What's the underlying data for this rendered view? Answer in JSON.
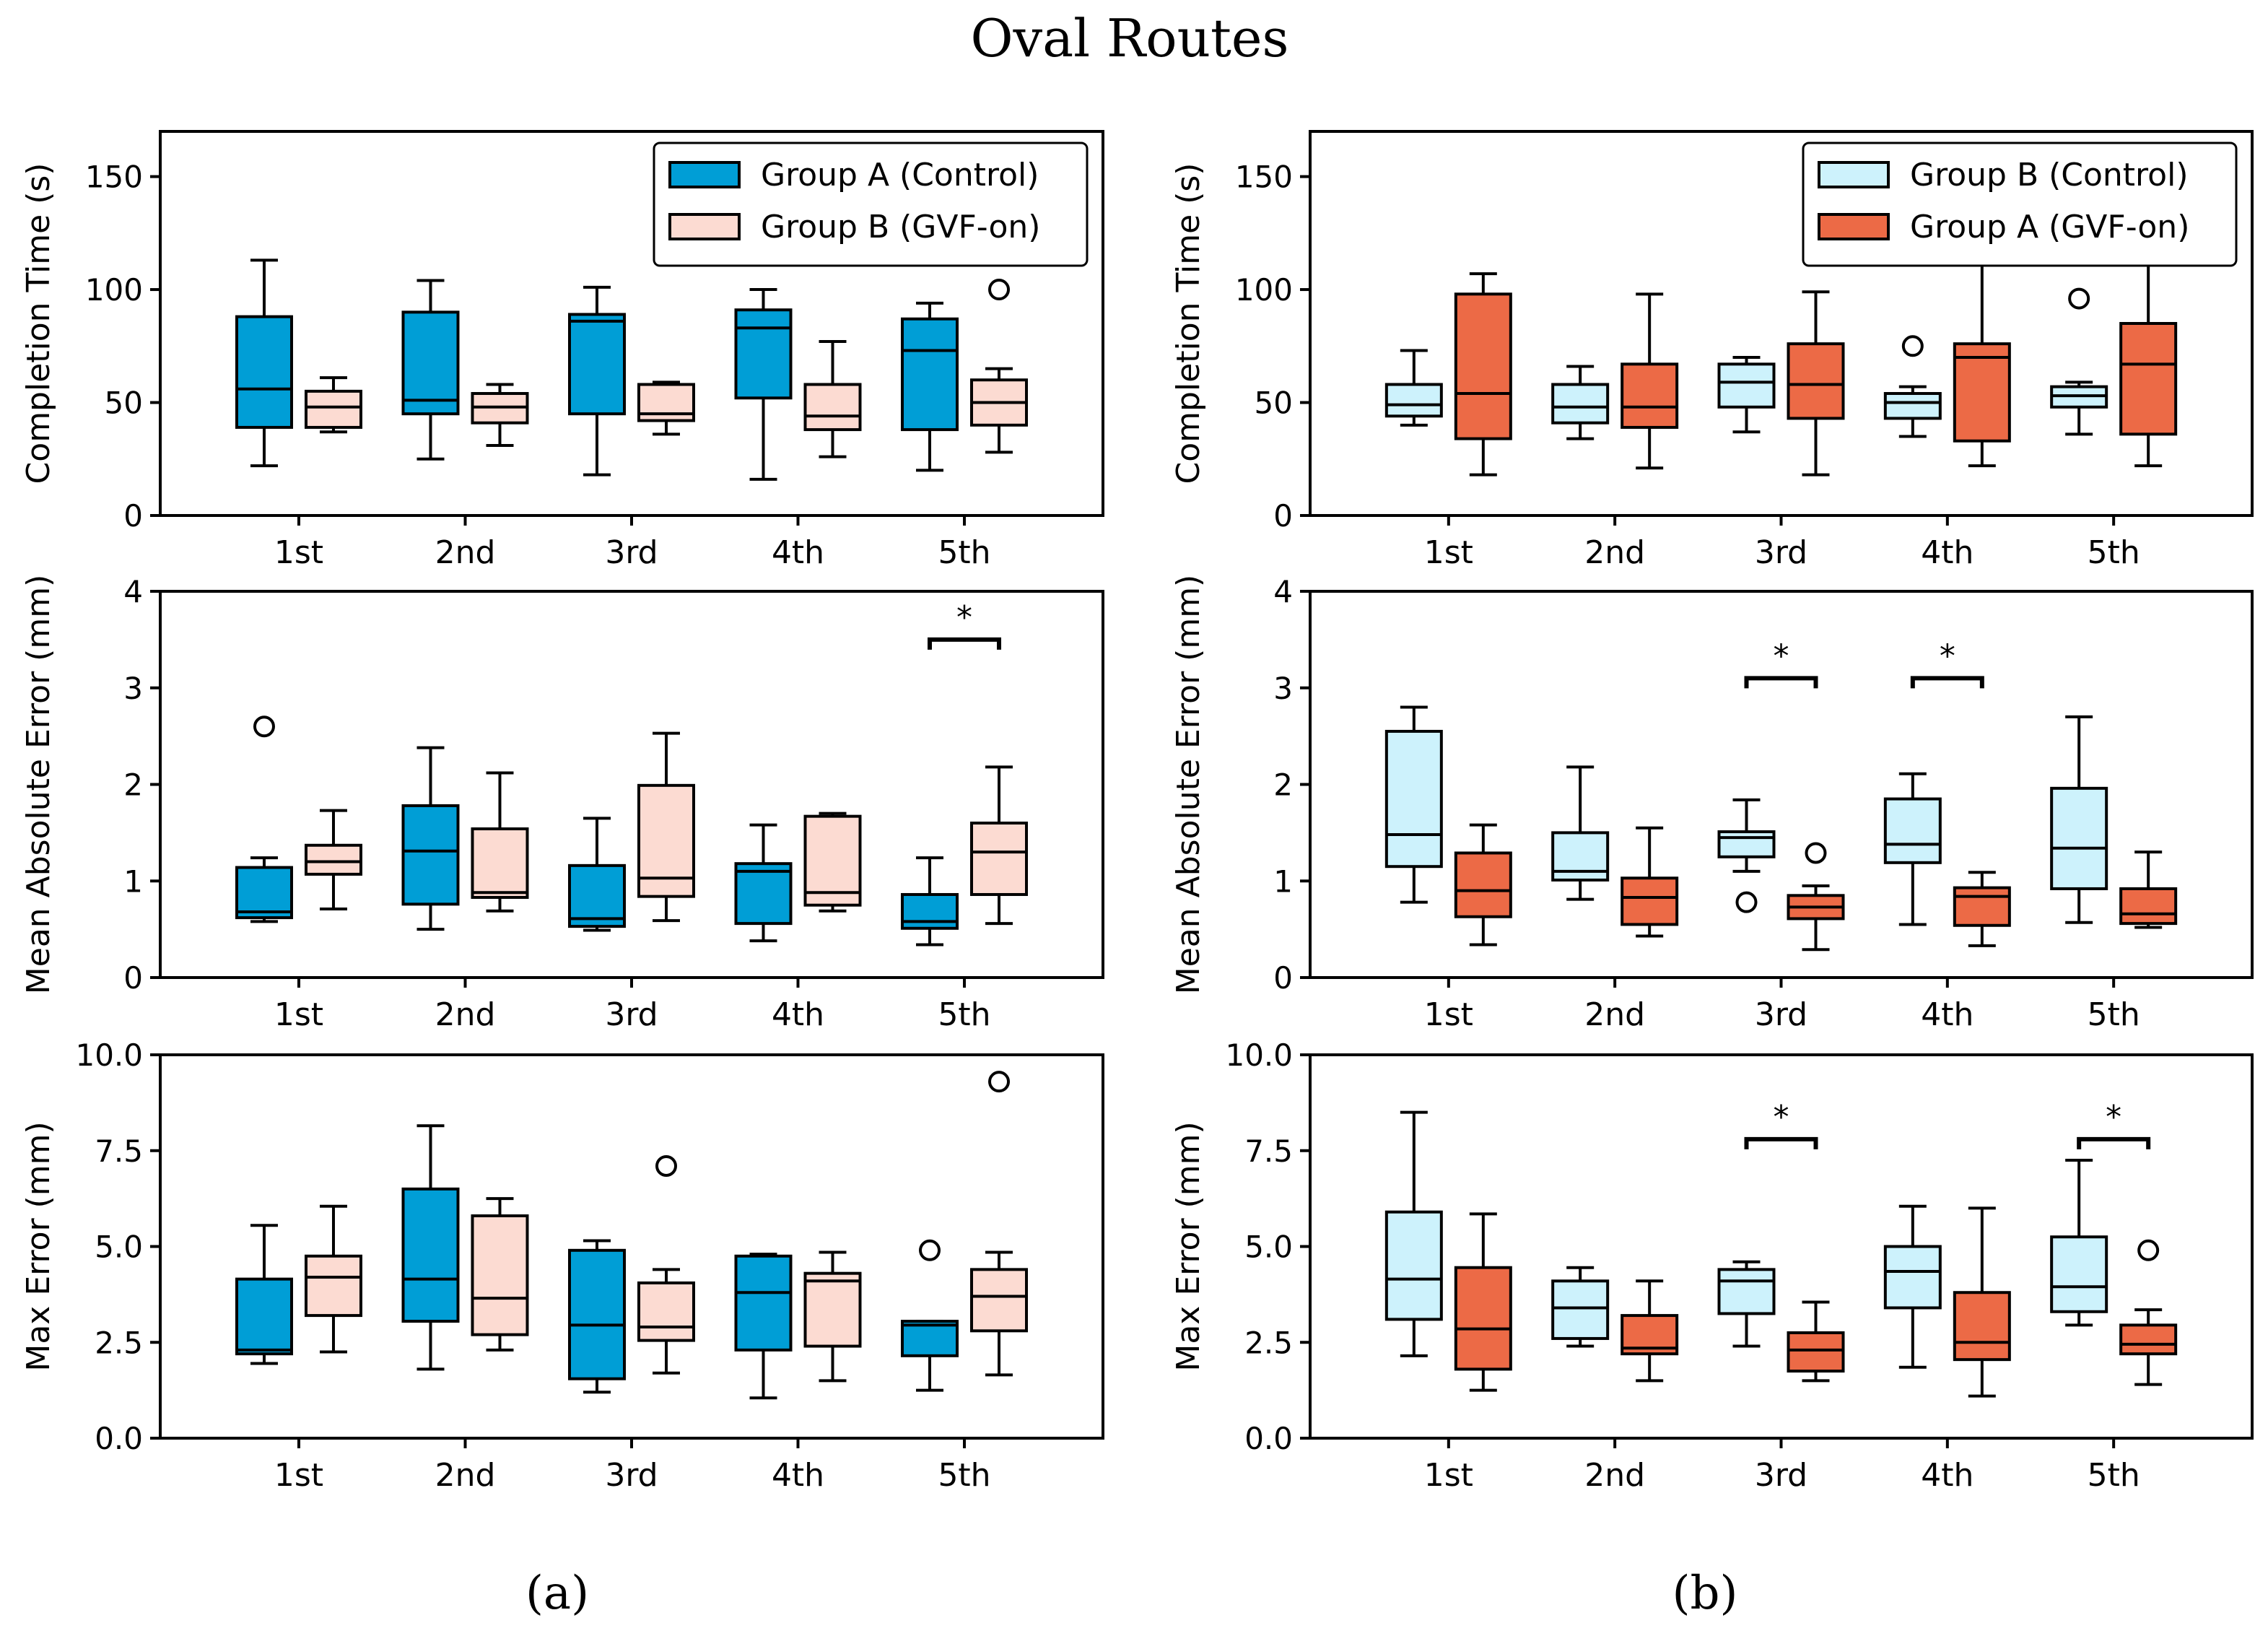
{
  "figure": {
    "title": "Oval Routes",
    "panel_a_label": "(a)",
    "panel_b_label": "(b)",
    "colors": {
      "group_a": "#009ed6",
      "group_b": "#fcdbd2",
      "group_b_control": "#cdf2fc",
      "group_a_gvf": "#ec6a46",
      "stroke": "#000000"
    }
  },
  "chart_data": [
    {
      "id": "a-time",
      "type": "box",
      "column": "a",
      "row": 0,
      "ylabel": "Completion Time (s)",
      "ylim": [
        0,
        170
      ],
      "yticks": [
        0,
        50,
        100,
        150
      ],
      "ytick_labels": [
        "0",
        "50",
        "100",
        "150"
      ],
      "categories": [
        "1st",
        "2nd",
        "3rd",
        "4th",
        "5th"
      ],
      "legend": {
        "position": "top-right",
        "entries": [
          {
            "label": "Group A (Control)",
            "color": "#009ed6"
          },
          {
            "label": "Group B (GVF-on)",
            "color": "#fcdbd2"
          }
        ]
      },
      "series": [
        {
          "name": "Group A (Control)",
          "color": "#009ed6",
          "boxes": [
            {
              "whislo": 22,
              "q1": 39,
              "med": 56,
              "q3": 88,
              "whishi": 113,
              "fliers": []
            },
            {
              "whislo": 25,
              "q1": 45,
              "med": 51,
              "q3": 90,
              "whishi": 104,
              "fliers": []
            },
            {
              "whislo": 18,
              "q1": 45,
              "med": 86,
              "q3": 89,
              "whishi": 101,
              "fliers": []
            },
            {
              "whislo": 16,
              "q1": 52,
              "med": 83,
              "q3": 91,
              "whishi": 100,
              "fliers": []
            },
            {
              "whislo": 20,
              "q1": 38,
              "med": 73,
              "q3": 87,
              "whishi": 94,
              "fliers": []
            }
          ]
        },
        {
          "name": "Group B (GVF-on)",
          "color": "#fcdbd2",
          "boxes": [
            {
              "whislo": 37,
              "q1": 39,
              "med": 48,
              "q3": 55,
              "whishi": 61,
              "fliers": []
            },
            {
              "whislo": 31,
              "q1": 41,
              "med": 48,
              "q3": 54,
              "whishi": 58,
              "fliers": []
            },
            {
              "whislo": 36,
              "q1": 42,
              "med": 45,
              "q3": 58,
              "whishi": 59,
              "fliers": []
            },
            {
              "whislo": 26,
              "q1": 38,
              "med": 44,
              "q3": 58,
              "whishi": 77,
              "fliers": []
            },
            {
              "whislo": 28,
              "q1": 40,
              "med": 50,
              "q3": 60,
              "whishi": 65,
              "fliers": [
                100
              ]
            }
          ]
        }
      ],
      "significance": []
    },
    {
      "id": "b-time",
      "type": "box",
      "column": "b",
      "row": 0,
      "ylabel": "Completion Time (s)",
      "ylim": [
        0,
        170
      ],
      "yticks": [
        0,
        50,
        100,
        150
      ],
      "ytick_labels": [
        "0",
        "50",
        "100",
        "150"
      ],
      "categories": [
        "1st",
        "2nd",
        "3rd",
        "4th",
        "5th"
      ],
      "legend": {
        "position": "top-right",
        "entries": [
          {
            "label": "Group B (Control)",
            "color": "#cdf2fc"
          },
          {
            "label": "Group A (GVF-on)",
            "color": "#ec6a46"
          }
        ]
      },
      "series": [
        {
          "name": "Group B (Control)",
          "color": "#cdf2fc",
          "boxes": [
            {
              "whislo": 40,
              "q1": 44,
              "med": 49,
              "q3": 58,
              "whishi": 73,
              "fliers": []
            },
            {
              "whislo": 34,
              "q1": 41,
              "med": 48,
              "q3": 58,
              "whishi": 66,
              "fliers": []
            },
            {
              "whislo": 37,
              "q1": 48,
              "med": 59,
              "q3": 67,
              "whishi": 70,
              "fliers": []
            },
            {
              "whislo": 35,
              "q1": 43,
              "med": 50,
              "q3": 54,
              "whishi": 57,
              "fliers": [
                75
              ]
            },
            {
              "whislo": 36,
              "q1": 48,
              "med": 53,
              "q3": 57,
              "whishi": 59,
              "fliers": [
                96
              ]
            }
          ]
        },
        {
          "name": "Group A (GVF-on)",
          "color": "#ec6a46",
          "boxes": [
            {
              "whislo": 18,
              "q1": 34,
              "med": 54,
              "q3": 98,
              "whishi": 107,
              "fliers": []
            },
            {
              "whislo": 21,
              "q1": 39,
              "med": 48,
              "q3": 67,
              "whishi": 98,
              "fliers": []
            },
            {
              "whislo": 18,
              "q1": 43,
              "med": 58,
              "q3": 76,
              "whishi": 99,
              "fliers": []
            },
            {
              "whislo": 22,
              "q1": 33,
              "med": 70,
              "q3": 76,
              "whishi": 112,
              "fliers": []
            },
            {
              "whislo": 22,
              "q1": 36,
              "med": 67,
              "q3": 85,
              "whishi": 114,
              "fliers": []
            }
          ]
        }
      ],
      "significance": []
    },
    {
      "id": "a-mae",
      "type": "box",
      "column": "a",
      "row": 1,
      "ylabel": "Mean Absolute Error (mm)",
      "ylim": [
        0,
        4
      ],
      "yticks": [
        0,
        1,
        2,
        3,
        4
      ],
      "ytick_labels": [
        "0",
        "1",
        "2",
        "3",
        "4"
      ],
      "categories": [
        "1st",
        "2nd",
        "3rd",
        "4th",
        "5th"
      ],
      "legend": null,
      "series": [
        {
          "name": "Group A (Control)",
          "color": "#009ed6",
          "boxes": [
            {
              "whislo": 0.58,
              "q1": 0.62,
              "med": 0.68,
              "q3": 1.14,
              "whishi": 1.24,
              "fliers": [
                2.6
              ]
            },
            {
              "whislo": 0.5,
              "q1": 0.76,
              "med": 1.31,
              "q3": 1.78,
              "whishi": 2.38,
              "fliers": []
            },
            {
              "whislo": 0.49,
              "q1": 0.53,
              "med": 0.61,
              "q3": 1.16,
              "whishi": 1.65,
              "fliers": []
            },
            {
              "whislo": 0.38,
              "q1": 0.56,
              "med": 1.1,
              "q3": 1.18,
              "whishi": 1.58,
              "fliers": []
            },
            {
              "whislo": 0.34,
              "q1": 0.51,
              "med": 0.58,
              "q3": 0.86,
              "whishi": 1.24,
              "fliers": []
            }
          ]
        },
        {
          "name": "Group B (GVF-on)",
          "color": "#fcdbd2",
          "boxes": [
            {
              "whislo": 0.71,
              "q1": 1.07,
              "med": 1.2,
              "q3": 1.37,
              "whishi": 1.73,
              "fliers": []
            },
            {
              "whislo": 0.69,
              "q1": 0.83,
              "med": 0.88,
              "q3": 1.54,
              "whishi": 2.12,
              "fliers": []
            },
            {
              "whislo": 0.59,
              "q1": 0.84,
              "med": 1.03,
              "q3": 1.99,
              "whishi": 2.53,
              "fliers": []
            },
            {
              "whislo": 0.69,
              "q1": 0.75,
              "med": 0.88,
              "q3": 1.67,
              "whishi": 1.7,
              "fliers": []
            },
            {
              "whislo": 0.56,
              "q1": 0.86,
              "med": 1.3,
              "q3": 1.6,
              "whishi": 2.18,
              "fliers": []
            }
          ]
        }
      ],
      "significance": [
        {
          "category": "5th",
          "y": 3.5,
          "label": "*"
        }
      ]
    },
    {
      "id": "b-mae",
      "type": "box",
      "column": "b",
      "row": 1,
      "ylabel": "Mean Absolute Error (mm)",
      "ylim": [
        0,
        4
      ],
      "yticks": [
        0,
        1,
        2,
        3,
        4
      ],
      "ytick_labels": [
        "0",
        "1",
        "2",
        "3",
        "4"
      ],
      "categories": [
        "1st",
        "2nd",
        "3rd",
        "4th",
        "5th"
      ],
      "legend": null,
      "series": [
        {
          "name": "Group B (Control)",
          "color": "#cdf2fc",
          "boxes": [
            {
              "whislo": 0.78,
              "q1": 1.15,
              "med": 1.48,
              "q3": 2.55,
              "whishi": 2.8,
              "fliers": []
            },
            {
              "whislo": 0.81,
              "q1": 1.01,
              "med": 1.1,
              "q3": 1.5,
              "whishi": 2.18,
              "fliers": []
            },
            {
              "whislo": 1.1,
              "q1": 1.25,
              "med": 1.45,
              "q3": 1.51,
              "whishi": 1.84,
              "fliers": [
                0.78
              ]
            },
            {
              "whislo": 0.55,
              "q1": 1.19,
              "med": 1.38,
              "q3": 1.85,
              "whishi": 2.11,
              "fliers": []
            },
            {
              "whislo": 0.57,
              "q1": 0.92,
              "med": 1.34,
              "q3": 1.96,
              "whishi": 2.7,
              "fliers": []
            }
          ]
        },
        {
          "name": "Group A (GVF-on)",
          "color": "#ec6a46",
          "boxes": [
            {
              "whislo": 0.34,
              "q1": 0.63,
              "med": 0.9,
              "q3": 1.29,
              "whishi": 1.58,
              "fliers": []
            },
            {
              "whislo": 0.43,
              "q1": 0.55,
              "med": 0.83,
              "q3": 1.03,
              "whishi": 1.55,
              "fliers": []
            },
            {
              "whislo": 0.29,
              "q1": 0.61,
              "med": 0.73,
              "q3": 0.85,
              "whishi": 0.95,
              "fliers": [
                1.29
              ]
            },
            {
              "whislo": 0.33,
              "q1": 0.54,
              "med": 0.84,
              "q3": 0.93,
              "whishi": 1.09,
              "fliers": []
            },
            {
              "whislo": 0.52,
              "q1": 0.56,
              "med": 0.66,
              "q3": 0.92,
              "whishi": 1.3,
              "fliers": []
            }
          ]
        }
      ],
      "significance": [
        {
          "category": "3rd",
          "y": 3.1,
          "label": "*"
        },
        {
          "category": "4th",
          "y": 3.1,
          "label": "*"
        }
      ]
    },
    {
      "id": "a-max",
      "type": "box",
      "column": "a",
      "row": 2,
      "ylabel": "Max Error (mm)",
      "ylim": [
        0,
        10
      ],
      "yticks": [
        0,
        2.5,
        5,
        7.5,
        10
      ],
      "ytick_labels": [
        "0.0",
        "2.5",
        "5.0",
        "7.5",
        "10.0"
      ],
      "categories": [
        "1st",
        "2nd",
        "3rd",
        "4th",
        "5th"
      ],
      "legend": null,
      "series": [
        {
          "name": "Group A (Control)",
          "color": "#009ed6",
          "boxes": [
            {
              "whislo": 1.95,
              "q1": 2.2,
              "med": 2.3,
              "q3": 4.15,
              "whishi": 5.55,
              "fliers": []
            },
            {
              "whislo": 1.8,
              "q1": 3.05,
              "med": 4.15,
              "q3": 6.5,
              "whishi": 8.15,
              "fliers": []
            },
            {
              "whislo": 1.2,
              "q1": 1.55,
              "med": 2.95,
              "q3": 4.9,
              "whishi": 5.15,
              "fliers": []
            },
            {
              "whislo": 1.05,
              "q1": 2.3,
              "med": 3.8,
              "q3": 4.75,
              "whishi": 4.8,
              "fliers": []
            },
            {
              "whislo": 1.25,
              "q1": 2.15,
              "med": 2.95,
              "q3": 3.05,
              "whishi": 3.05,
              "fliers": [
                4.9
              ]
            }
          ]
        },
        {
          "name": "Group B (GVF-on)",
          "color": "#fcdbd2",
          "boxes": [
            {
              "whislo": 2.25,
              "q1": 3.2,
              "med": 4.2,
              "q3": 4.75,
              "whishi": 6.05,
              "fliers": []
            },
            {
              "whislo": 2.3,
              "q1": 2.7,
              "med": 3.65,
              "q3": 5.8,
              "whishi": 6.25,
              "fliers": []
            },
            {
              "whislo": 1.7,
              "q1": 2.55,
              "med": 2.9,
              "q3": 4.05,
              "whishi": 4.4,
              "fliers": [
                7.1
              ]
            },
            {
              "whislo": 1.5,
              "q1": 2.4,
              "med": 4.1,
              "q3": 4.3,
              "whishi": 4.85,
              "fliers": []
            },
            {
              "whislo": 1.65,
              "q1": 2.8,
              "med": 3.7,
              "q3": 4.4,
              "whishi": 4.85,
              "fliers": [
                9.3
              ]
            }
          ]
        }
      ],
      "significance": []
    },
    {
      "id": "b-max",
      "type": "box",
      "column": "b",
      "row": 2,
      "ylabel": "Max Error (mm)",
      "ylim": [
        0,
        10
      ],
      "yticks": [
        0,
        2.5,
        5,
        7.5,
        10
      ],
      "ytick_labels": [
        "0.0",
        "2.5",
        "5.0",
        "7.5",
        "10.0"
      ],
      "categories": [
        "1st",
        "2nd",
        "3rd",
        "4th",
        "5th"
      ],
      "legend": null,
      "series": [
        {
          "name": "Group B (Control)",
          "color": "#cdf2fc",
          "boxes": [
            {
              "whislo": 2.15,
              "q1": 3.1,
              "med": 4.15,
              "q3": 5.9,
              "whishi": 8.5,
              "fliers": []
            },
            {
              "whislo": 2.4,
              "q1": 2.6,
              "med": 3.4,
              "q3": 4.1,
              "whishi": 4.45,
              "fliers": []
            },
            {
              "whislo": 2.4,
              "q1": 3.25,
              "med": 4.1,
              "q3": 4.4,
              "whishi": 4.6,
              "fliers": []
            },
            {
              "whislo": 1.85,
              "q1": 3.4,
              "med": 4.35,
              "q3": 5.0,
              "whishi": 6.05,
              "fliers": []
            },
            {
              "whislo": 2.95,
              "q1": 3.3,
              "med": 3.95,
              "q3": 5.25,
              "whishi": 7.25,
              "fliers": []
            }
          ]
        },
        {
          "name": "Group A (GVF-on)",
          "color": "#ec6a46",
          "boxes": [
            {
              "whislo": 1.25,
              "q1": 1.8,
              "med": 2.85,
              "q3": 4.45,
              "whishi": 5.85,
              "fliers": []
            },
            {
              "whislo": 1.5,
              "q1": 2.2,
              "med": 2.35,
              "q3": 3.2,
              "whishi": 4.1,
              "fliers": []
            },
            {
              "whislo": 1.5,
              "q1": 1.75,
              "med": 2.3,
              "q3": 2.75,
              "whishi": 3.55,
              "fliers": []
            },
            {
              "whislo": 1.1,
              "q1": 2.05,
              "med": 2.5,
              "q3": 3.8,
              "whishi": 6.0,
              "fliers": []
            },
            {
              "whislo": 1.4,
              "q1": 2.2,
              "med": 2.45,
              "q3": 2.95,
              "whishi": 3.35,
              "fliers": [
                4.9
              ]
            }
          ]
        }
      ],
      "significance": [
        {
          "category": "3rd",
          "y": 7.8,
          "label": "*"
        },
        {
          "category": "5th",
          "y": 7.8,
          "label": "*"
        }
      ]
    }
  ]
}
